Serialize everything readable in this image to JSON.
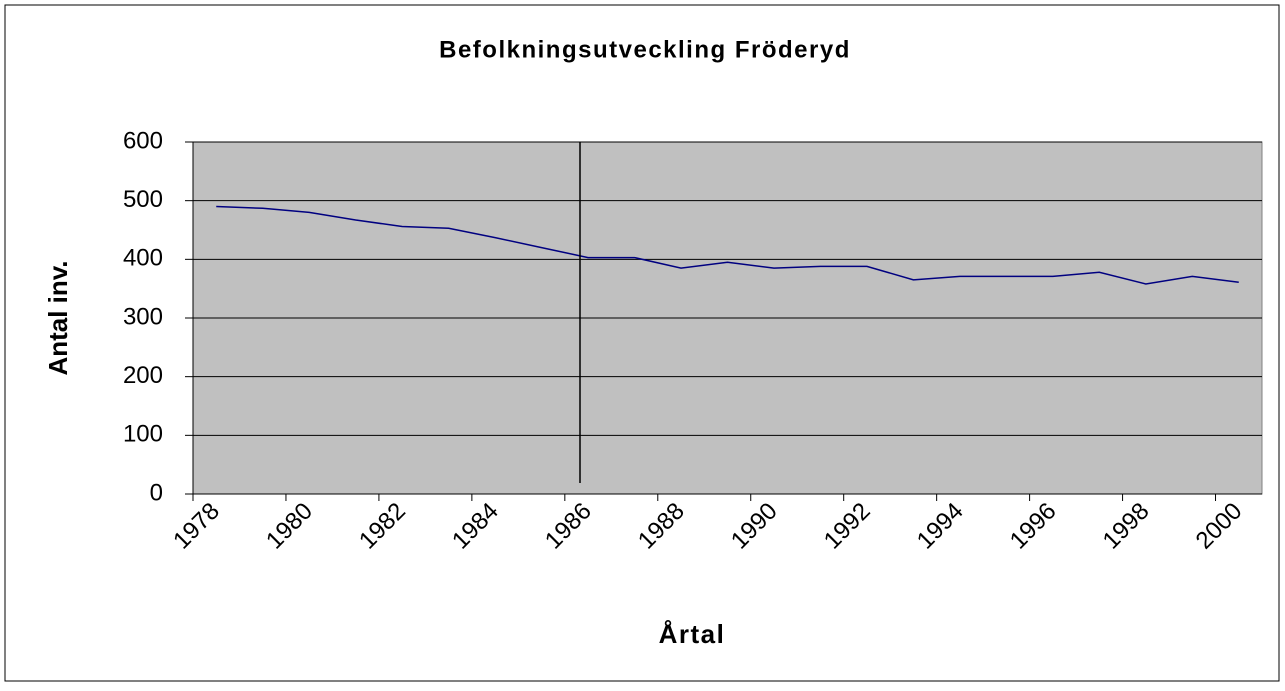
{
  "chart_data": {
    "type": "line",
    "title": "Befolkningsutveckling Fröderyd",
    "x_label": "Årtal",
    "y_label": "Antal inv.",
    "categories": [
      "1978",
      null,
      "1980",
      null,
      "1982",
      null,
      "1984",
      null,
      "1986",
      null,
      "1988",
      null,
      "1990",
      null,
      "1992",
      null,
      "1994",
      null,
      "1996",
      null,
      "1998",
      null,
      "2000"
    ],
    "series": [
      {
        "name": "Antal inv.",
        "color": "#000080",
        "values": [
          490,
          487,
          480,
          467,
          456,
          453,
          437,
          420,
          403,
          403,
          385,
          395,
          385,
          388,
          388,
          365,
          371,
          371,
          371,
          378,
          358,
          371,
          361
        ]
      }
    ],
    "ylim": [
      0,
      600
    ],
    "yticks": [
      0,
      100,
      200,
      300,
      400,
      500,
      600
    ],
    "grid": true
  }
}
